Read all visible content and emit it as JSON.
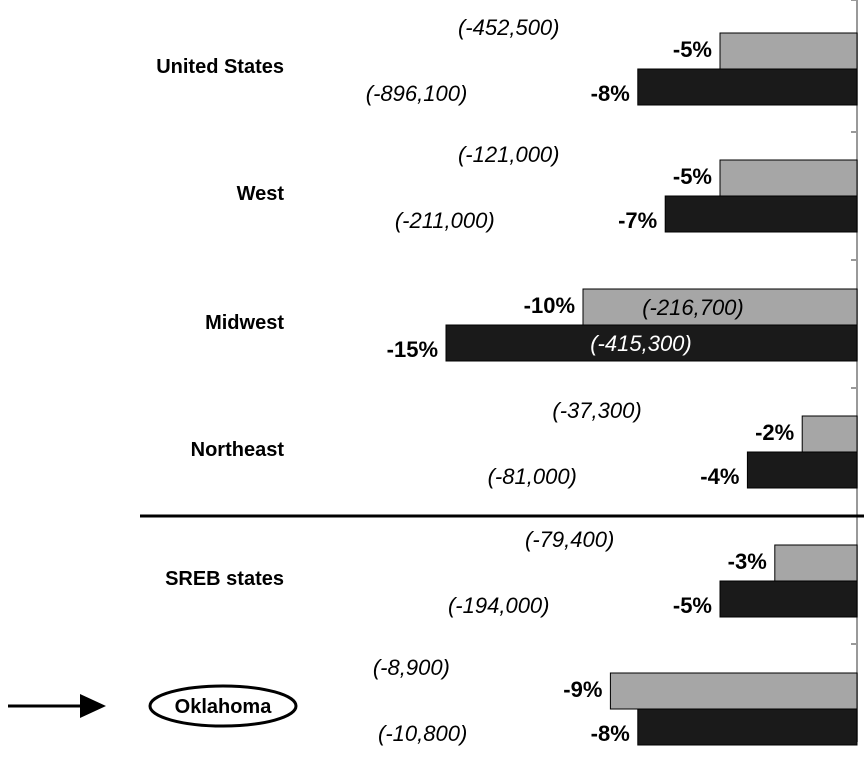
{
  "chart_data": {
    "type": "bar",
    "orientation": "horizontal",
    "categories": [
      "United States",
      "West",
      "Midwest",
      "Northeast",
      "SREB states",
      "Oklahoma"
    ],
    "highlighted_category": "Oklahoma",
    "series": [
      {
        "color": "#a6a6a6",
        "values": [
          -5,
          -5,
          -10,
          -2,
          -3,
          -9
        ],
        "labels": [
          "-5%",
          "-5%",
          "-10%",
          "-2%",
          "-3%",
          "-9%"
        ],
        "counts": [
          "(-452,500)",
          "(-121,000)",
          "(-216,700)",
          "(-37,300)",
          "(-79,400)",
          "(-8,900)"
        ]
      },
      {
        "color": "#1a1a1a",
        "values": [
          -8,
          -7,
          -15,
          -4,
          -5,
          -8
        ],
        "labels": [
          "-8%",
          "-7%",
          "-15%",
          "-4%",
          "-5%",
          "-8%"
        ],
        "counts": [
          "(-896,100)",
          "(-211,000)",
          "(-415,300)",
          "(-81,000)",
          "(-194,000)",
          "(-10,800)"
        ]
      }
    ],
    "xlim": [
      -15,
      0
    ],
    "grid": false,
    "legend": "none",
    "separator_after_category": "Northeast"
  }
}
